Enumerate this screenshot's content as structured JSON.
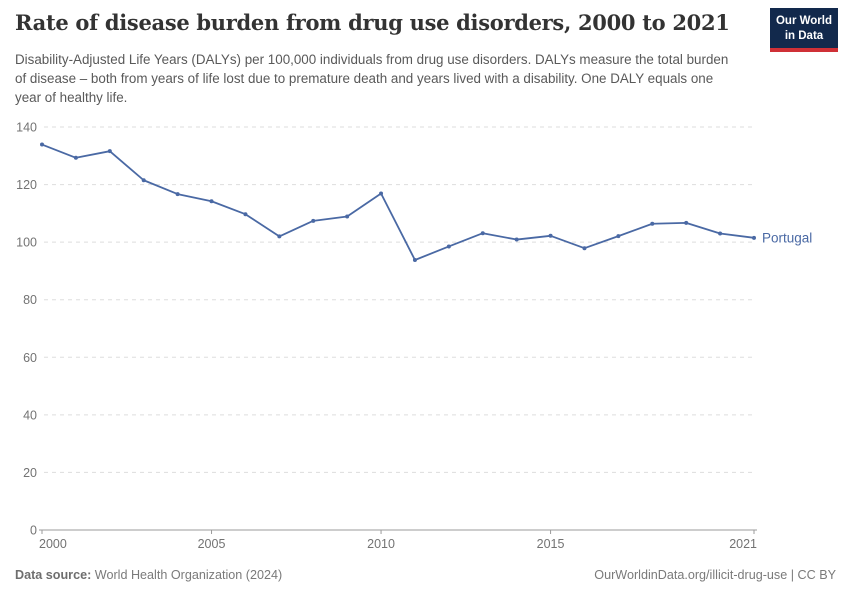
{
  "header": {
    "title": "Rate of disease burden from drug use disorders, 2000 to 2021",
    "subtitle": "Disability-Adjusted Life Years (DALYs) per 100,000 individuals from drug use disorders. DALYs measure the total burden of disease – both from years of life lost due to premature death and years lived with a disability. One DALY equals one year of healthy life.",
    "logo": {
      "line1": "Our World",
      "line2": "in Data"
    }
  },
  "chart_data": {
    "type": "line",
    "title": "Rate of disease burden from drug use disorders, 2000 to 2021",
    "xlabel": "",
    "ylabel": "",
    "x": [
      2000,
      2001,
      2002,
      2003,
      2004,
      2005,
      2006,
      2007,
      2008,
      2009,
      2010,
      2011,
      2012,
      2013,
      2014,
      2015,
      2016,
      2017,
      2018,
      2019,
      2020,
      2021
    ],
    "series": [
      {
        "name": "Portugal",
        "color": "#4A69A4",
        "values": [
          133.9,
          129.3,
          131.6,
          121.5,
          116.7,
          114.2,
          109.7,
          102.0,
          107.4,
          108.9,
          116.9,
          93.8,
          98.5,
          103.1,
          100.9,
          102.2,
          97.9,
          102.1,
          106.4,
          106.7,
          103.0,
          101.5
        ]
      }
    ],
    "ylim": [
      0,
      140
    ],
    "yticks": [
      0,
      20,
      40,
      60,
      80,
      100,
      120,
      140
    ],
    "xticks": [
      2000,
      2005,
      2010,
      2015,
      2021
    ],
    "grid": "horizontal-dashed",
    "legend_position": "line-end-label"
  },
  "colors": {
    "line": "#4A69A4",
    "grid": "#DDDDDD",
    "axis": "#9B9B9B",
    "tick_label": "#737373",
    "title_text": "#333333",
    "subtitle_text": "#595959",
    "footer_text": "#7A7A7A",
    "logo_bg": "#12294C",
    "logo_bar": "#CF3036"
  },
  "footer": {
    "data_source_label": "Data source:",
    "data_source_value": "World Health Organization (2024)",
    "attribution": "OurWorldinData.org/illicit-drug-use | CC BY"
  }
}
